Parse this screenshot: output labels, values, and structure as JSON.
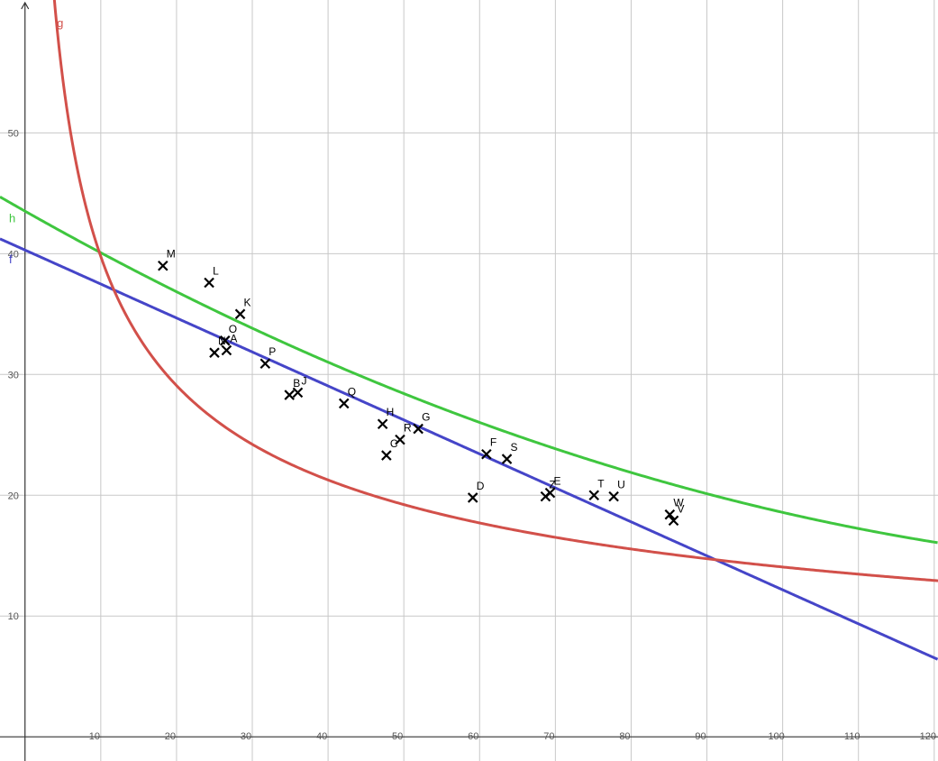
{
  "chart_data": {
    "type": "scatter",
    "grid": true,
    "xlim": [
      -3.3,
      120.5
    ],
    "ylim": [
      -2,
      61
    ],
    "x_ticks": [
      10,
      20,
      30,
      40,
      50,
      60,
      70,
      80,
      90,
      100,
      110,
      120
    ],
    "x_tick_labels": [
      "10",
      "20",
      "30",
      "40",
      "50",
      "60",
      "70",
      "80",
      "90",
      "100",
      "110",
      "120"
    ],
    "y_ticks": [
      10,
      20,
      30,
      40,
      50
    ],
    "y_tick_labels": [
      "10",
      "20",
      "30",
      "40",
      "50"
    ],
    "points": [
      {
        "label": "M",
        "x": 18.2,
        "y": 39.0
      },
      {
        "label": "L",
        "x": 24.3,
        "y": 37.6
      },
      {
        "label": "K",
        "x": 28.4,
        "y": 35.0
      },
      {
        "label": "N",
        "x": 25.0,
        "y": 31.8
      },
      {
        "label": "O",
        "x": 26.4,
        "y": 32.8
      },
      {
        "label": "A",
        "x": 26.6,
        "y": 32.0
      },
      {
        "label": "P",
        "x": 31.7,
        "y": 30.9
      },
      {
        "label": "B",
        "x": 34.9,
        "y": 28.3
      },
      {
        "label": "J",
        "x": 36.0,
        "y": 28.5
      },
      {
        "label": "Q",
        "x": 42.1,
        "y": 27.6
      },
      {
        "label": "H",
        "x": 47.2,
        "y": 25.9
      },
      {
        "label": "C",
        "x": 47.7,
        "y": 23.3
      },
      {
        "label": "R",
        "x": 49.5,
        "y": 24.6
      },
      {
        "label": "G",
        "x": 51.9,
        "y": 25.5
      },
      {
        "label": "F",
        "x": 60.9,
        "y": 23.4
      },
      {
        "label": "S",
        "x": 63.6,
        "y": 23.0
      },
      {
        "label": "D",
        "x": 59.1,
        "y": 19.8
      },
      {
        "label": "Z",
        "x": 68.7,
        "y": 19.9
      },
      {
        "label": "E",
        "x": 69.3,
        "y": 20.2
      },
      {
        "label": "T",
        "x": 75.1,
        "y": 20.0
      },
      {
        "label": "U",
        "x": 77.7,
        "y": 19.9
      },
      {
        "label": "W",
        "x": 85.1,
        "y": 18.4
      },
      {
        "label": "V",
        "x": 85.6,
        "y": 17.9
      }
    ],
    "series": [
      {
        "name": "f",
        "kind": "linear",
        "color": "#4545c8",
        "slope": -0.2813,
        "intercept": 40.3,
        "label_y": 39.2
      },
      {
        "name": "h",
        "kind": "quadratic",
        "color": "#3fc63f",
        "a": 0.001053,
        "b": -0.3547,
        "c": 43.52,
        "label_y": 42.6
      },
      {
        "name": "g",
        "kind": "power",
        "color": "#d2504a",
        "coef": 112.5,
        "exponent": -0.4516,
        "label_x": 4.2
      }
    ]
  }
}
